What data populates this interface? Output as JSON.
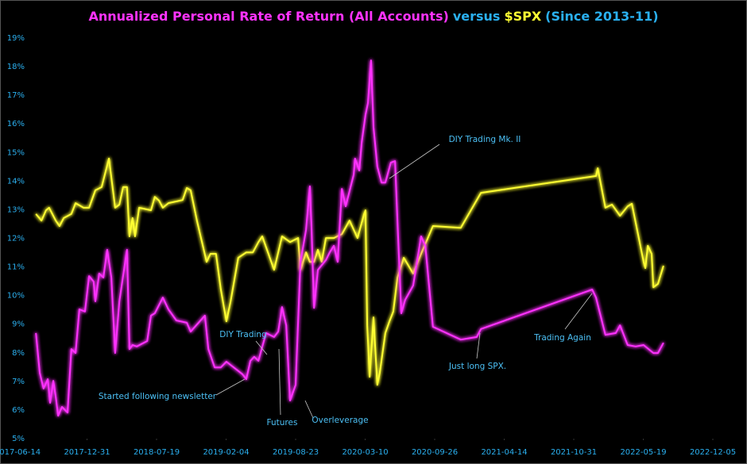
{
  "chart_data": {
    "type": "line",
    "title": [
      {
        "text": "Annualized Personal Rate of Return (All Accounts)",
        "color": "#ff33ff"
      },
      {
        "text": "versus",
        "color": "#2ab0f0"
      },
      {
        "text": "$SPX",
        "color": "#ffff33"
      },
      {
        "text": "(Since 2013-11)",
        "color": "#2ab0f0"
      }
    ],
    "xlim": [
      "2017-06-14",
      "2022-12-05"
    ],
    "xticks": [
      "2017-06-14",
      "2017-12-31",
      "2018-07-19",
      "2019-02-04",
      "2019-08-23",
      "2020-03-10",
      "2020-09-26",
      "2021-04-14",
      "2021-10-31",
      "2022-05-19",
      "2022-12-05"
    ],
    "ylim": [
      5,
      19
    ],
    "yticks": [
      {
        "value": 5,
        "label": "5%"
      },
      {
        "value": 6,
        "label": "6%"
      },
      {
        "value": 7,
        "label": "7%"
      },
      {
        "value": 8,
        "label": "8%"
      },
      {
        "value": 9,
        "label": "9%"
      },
      {
        "value": 10,
        "label": "10%"
      },
      {
        "value": 11,
        "label": "11%"
      },
      {
        "value": 12,
        "label": "12%"
      },
      {
        "value": 13,
        "label": "13%"
      },
      {
        "value": 14,
        "label": "14%"
      },
      {
        "value": 15,
        "label": "15%"
      },
      {
        "value": 16,
        "label": "16%"
      },
      {
        "value": 17,
        "label": "17%"
      },
      {
        "value": 18,
        "label": "18%"
      },
      {
        "value": 19,
        "label": "19%"
      }
    ],
    "grid": false,
    "series": [
      {
        "color": "#ffff33",
        "x": [
          "2017-08-06",
          "2017-08-22",
          "2017-09-04",
          "2017-09-13",
          "2017-10-02",
          "2017-10-13",
          "2017-10-25",
          "2017-11-16",
          "2017-11-28",
          "2017-12-21",
          "2018-01-06",
          "2018-01-24",
          "2018-02-11",
          "2018-03-04",
          "2018-03-22",
          "2018-04-03",
          "2018-04-14",
          "2018-04-25",
          "2018-05-02",
          "2018-05-11",
          "2018-05-18",
          "2018-05-30",
          "2018-07-03",
          "2018-07-14",
          "2018-07-26",
          "2018-08-06",
          "2018-08-22",
          "2018-10-02",
          "2018-10-14",
          "2018-10-25",
          "2018-11-13",
          "2018-12-10",
          "2018-12-21",
          "2019-01-06",
          "2019-01-20",
          "2019-02-05",
          "2019-02-17",
          "2019-03-11",
          "2019-04-03",
          "2019-04-22",
          "2019-05-08",
          "2019-05-19",
          "2019-06-22",
          "2019-07-15",
          "2019-08-07",
          "2019-08-30",
          "2019-09-06",
          "2019-09-22",
          "2019-10-03",
          "2019-10-15",
          "2019-10-26",
          "2019-11-06",
          "2019-11-18",
          "2019-12-11",
          "2020-01-03",
          "2020-01-25",
          "2020-02-17",
          "2020-03-07",
          "2020-03-11",
          "2020-03-16",
          "2020-03-23",
          "2020-04-03",
          "2020-04-14",
          "2020-04-21",
          "2020-05-07",
          "2020-05-19",
          "2020-05-30",
          "2020-06-11",
          "2020-06-29",
          "2020-07-26",
          "2020-08-18",
          "2020-09-21",
          "2020-12-10",
          "2021-02-06",
          "2022-01-03",
          "2022-01-08",
          "2022-01-30",
          "2022-02-18",
          "2022-03-13",
          "2022-04-04",
          "2022-04-16",
          "2022-05-20",
          "2022-05-25",
          "2022-06-01",
          "2022-06-12",
          "2022-06-17",
          "2022-06-30",
          "2022-07-16"
        ],
        "values": [
          12.85,
          12.62,
          12.98,
          13.07,
          12.62,
          12.43,
          12.71,
          12.85,
          13.23,
          13.07,
          13.07,
          13.68,
          13.79,
          14.79,
          13.07,
          13.18,
          13.79,
          13.79,
          12.07,
          12.71,
          12.07,
          13.07,
          12.98,
          13.45,
          13.32,
          13.07,
          13.23,
          13.34,
          13.76,
          13.68,
          12.57,
          11.18,
          11.46,
          11.46,
          10.21,
          9.1,
          9.8,
          11.32,
          11.51,
          11.51,
          11.87,
          12.07,
          10.9,
          12.07,
          11.87,
          12.01,
          10.9,
          11.51,
          11.18,
          11.18,
          11.6,
          11.18,
          12.01,
          12.01,
          12.15,
          12.62,
          12.01,
          12.85,
          12.98,
          8.96,
          7.16,
          9.24,
          6.88,
          7.3,
          8.69,
          9.1,
          9.44,
          10.63,
          11.32,
          10.77,
          11.46,
          12.43,
          12.37,
          13.59,
          14.18,
          14.45,
          13.07,
          13.18,
          12.79,
          13.12,
          13.21,
          11.18,
          10.96,
          11.74,
          11.46,
          10.29,
          10.41,
          11.04
        ]
      },
      {
        "color": "#ff33ff",
        "x": [
          "2017-08-06",
          "2017-08-17",
          "2017-08-28",
          "2017-09-09",
          "2017-09-16",
          "2017-09-25",
          "2017-10-02",
          "2017-10-09",
          "2017-10-20",
          "2017-11-05",
          "2017-11-16",
          "2017-11-28",
          "2017-12-09",
          "2017-12-25",
          "2018-01-06",
          "2018-01-19",
          "2018-01-24",
          "2018-02-04",
          "2018-02-16",
          "2018-02-27",
          "2018-03-11",
          "2018-03-22",
          "2018-04-03",
          "2018-04-25",
          "2018-05-02",
          "2018-05-11",
          "2018-05-23",
          "2018-06-22",
          "2018-07-03",
          "2018-07-14",
          "2018-08-06",
          "2018-08-22",
          "2018-09-14",
          "2018-10-14",
          "2018-10-25",
          "2018-12-05",
          "2018-12-15",
          "2019-01-02",
          "2019-01-20",
          "2019-02-05",
          "2019-03-23",
          "2019-04-03",
          "2019-04-15",
          "2019-04-26",
          "2019-05-08",
          "2019-05-30",
          "2019-06-22",
          "2019-07-04",
          "2019-07-15",
          "2019-07-27",
          "2019-08-07",
          "2019-08-23",
          "2019-09-06",
          "2019-09-22",
          "2019-10-03",
          "2019-10-08",
          "2019-10-15",
          "2019-10-26",
          "2019-11-18",
          "2019-11-29",
          "2019-12-11",
          "2019-12-22",
          "2020-01-03",
          "2020-01-14",
          "2020-02-06",
          "2020-02-10",
          "2020-02-22",
          "2020-02-29",
          "2020-03-11",
          "2020-03-18",
          "2020-03-27",
          "2020-04-03",
          "2020-04-14",
          "2020-04-26",
          "2020-05-07",
          "2020-05-23",
          "2020-06-04",
          "2020-06-11",
          "2020-06-22",
          "2020-07-03",
          "2020-07-26",
          "2020-08-18",
          "2020-08-30",
          "2020-09-21",
          "2020-12-10",
          "2021-01-25",
          "2021-02-06",
          "2021-12-23",
          "2022-01-03",
          "2022-01-30",
          "2022-03-01",
          "2022-03-13",
          "2022-04-04",
          "2022-04-27",
          "2022-05-20",
          "2022-06-17",
          "2022-06-30",
          "2022-07-16"
        ],
        "values": [
          8.69,
          7.3,
          6.75,
          7.08,
          6.25,
          7.02,
          6.47,
          5.8,
          6.11,
          5.91,
          8.13,
          7.99,
          9.52,
          9.44,
          10.68,
          10.49,
          9.8,
          10.77,
          10.63,
          11.6,
          10.63,
          7.99,
          9.8,
          11.6,
          8.13,
          8.27,
          8.22,
          8.41,
          9.3,
          9.38,
          9.93,
          9.52,
          9.13,
          9.05,
          8.74,
          9.3,
          8.13,
          7.49,
          7.49,
          7.69,
          7.25,
          7.08,
          7.72,
          7.86,
          7.72,
          8.69,
          8.55,
          8.74,
          9.6,
          8.96,
          6.33,
          6.88,
          11.18,
          12.29,
          13.82,
          12.29,
          9.57,
          10.9,
          11.24,
          11.51,
          11.74,
          11.18,
          13.73,
          13.12,
          14.23,
          14.79,
          14.37,
          15.34,
          16.31,
          16.73,
          18.22,
          15.89,
          14.51,
          13.95,
          13.95,
          14.65,
          14.7,
          12.57,
          9.38,
          9.85,
          10.35,
          12.07,
          11.74,
          8.91,
          8.46,
          8.55,
          8.83,
          10.21,
          9.93,
          8.63,
          8.69,
          8.96,
          8.27,
          8.22,
          8.27,
          7.99,
          7.99,
          8.35
        ]
      }
    ],
    "annotations": [
      "Started following newsletter",
      "DIY Trading",
      "Futures",
      "Overleverage",
      "DIY Trading Mk. II",
      "Just long SPX.",
      "Trading Again"
    ]
  }
}
